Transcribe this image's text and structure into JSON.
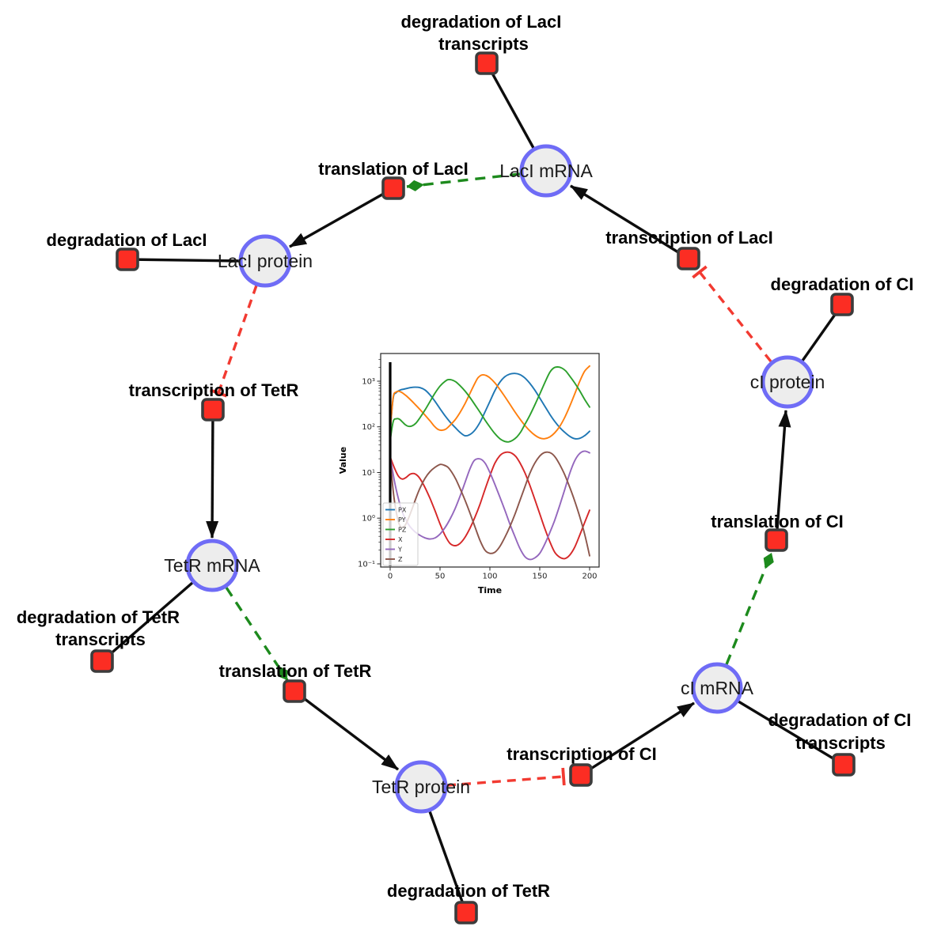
{
  "diagram": {
    "species": [
      {
        "id": "lacI_mRNA",
        "label": "LacI mRNA"
      },
      {
        "id": "lacI_protein",
        "label": "LacI protein"
      },
      {
        "id": "tetR_mRNA",
        "label": "TetR mRNA"
      },
      {
        "id": "tetR_protein",
        "label": "TetR protein"
      },
      {
        "id": "cI_mRNA",
        "label": "cI mRNA"
      },
      {
        "id": "cI_protein",
        "label": "cI protein"
      }
    ],
    "reactions": [
      {
        "id": "deg_lacI_transcripts",
        "lines": [
          "degradation of LacI",
          "transcripts"
        ]
      },
      {
        "id": "translation_lacI",
        "lines": [
          "translation of LacI"
        ]
      },
      {
        "id": "transcription_lacI",
        "lines": [
          "transcription of LacI"
        ]
      },
      {
        "id": "deg_lacI",
        "lines": [
          "degradation of LacI"
        ]
      },
      {
        "id": "transcription_tetR",
        "lines": [
          "transcription of TetR"
        ]
      },
      {
        "id": "deg_tetR_transcripts",
        "lines": [
          "degradation of TetR",
          "transcripts"
        ]
      },
      {
        "id": "translation_tetR",
        "lines": [
          "translation of TetR"
        ]
      },
      {
        "id": "deg_tetR",
        "lines": [
          "degradation of TetR"
        ]
      },
      {
        "id": "transcription_cI",
        "lines": [
          "transcription of CI"
        ]
      },
      {
        "id": "deg_cI_transcripts",
        "lines": [
          "degradation of CI",
          "transcripts"
        ]
      },
      {
        "id": "translation_cI",
        "lines": [
          "translation of CI"
        ]
      },
      {
        "id": "deg_cI",
        "lines": [
          "degradation of CI"
        ]
      }
    ],
    "style_colors": {
      "species_fill": "#ededed",
      "species_border": "#6f6cf6",
      "reaction_fill": "#fc2d23",
      "reaction_border": "#3c3c3c",
      "plain_edge": "#0d0d0d",
      "activation_edge": "#1d8a1d",
      "inhibition_edge": "#f23a31"
    }
  },
  "chart_data": {
    "type": "line",
    "title": "",
    "xlabel": "Time",
    "ylabel": "Value",
    "xlim": [
      -9.5,
      209.5
    ],
    "xticks": [
      0,
      50,
      100,
      150,
      200
    ],
    "xtick_labels": [
      "0",
      "50",
      "100",
      "150",
      "200"
    ],
    "yscale": "log",
    "ylim": [
      0.085,
      4000
    ],
    "ytick_labels_top_down": [
      "10³",
      "10²",
      "10¹",
      "10⁰",
      "10⁻¹"
    ],
    "grid": false,
    "legend_position": "lower left",
    "initial_spike_line_x": 0,
    "series": [
      {
        "name": "PX",
        "color": "#1f77b4",
        "points": [
          [
            0,
            80
          ],
          [
            3,
            420
          ],
          [
            6,
            560
          ],
          [
            10,
            640
          ],
          [
            15,
            680
          ],
          [
            20,
            720
          ],
          [
            25,
            740
          ],
          [
            30,
            720
          ],
          [
            35,
            640
          ],
          [
            40,
            500
          ],
          [
            45,
            360
          ],
          [
            50,
            250
          ],
          [
            55,
            175
          ],
          [
            60,
            128
          ],
          [
            65,
            98
          ],
          [
            70,
            76
          ],
          [
            75,
            64
          ],
          [
            80,
            68
          ],
          [
            85,
            85
          ],
          [
            90,
            125
          ],
          [
            95,
            210
          ],
          [
            100,
            360
          ],
          [
            105,
            620
          ],
          [
            110,
            950
          ],
          [
            115,
            1250
          ],
          [
            120,
            1430
          ],
          [
            125,
            1480
          ],
          [
            130,
            1400
          ],
          [
            135,
            1180
          ],
          [
            140,
            900
          ],
          [
            145,
            640
          ],
          [
            150,
            430
          ],
          [
            155,
            285
          ],
          [
            160,
            190
          ],
          [
            165,
            132
          ],
          [
            170,
            97
          ],
          [
            175,
            76
          ],
          [
            180,
            62
          ],
          [
            185,
            55
          ],
          [
            190,
            56
          ],
          [
            195,
            64
          ],
          [
            200,
            80
          ]
        ]
      },
      {
        "name": "PY",
        "color": "#ff7f0e",
        "points": [
          [
            0,
            80
          ],
          [
            3,
            440
          ],
          [
            6,
            580
          ],
          [
            9,
            600
          ],
          [
            12,
            560
          ],
          [
            16,
            480
          ],
          [
            20,
            400
          ],
          [
            25,
            310
          ],
          [
            30,
            238
          ],
          [
            35,
            180
          ],
          [
            40,
            135
          ],
          [
            44,
            105
          ],
          [
            48,
            88
          ],
          [
            52,
            84
          ],
          [
            56,
            90
          ],
          [
            60,
            108
          ],
          [
            65,
            142
          ],
          [
            70,
            205
          ],
          [
            75,
            320
          ],
          [
            80,
            540
          ],
          [
            85,
            900
          ],
          [
            88,
            1180
          ],
          [
            92,
            1370
          ],
          [
            96,
            1340
          ],
          [
            100,
            1180
          ],
          [
            105,
            920
          ],
          [
            110,
            660
          ],
          [
            115,
            460
          ],
          [
            120,
            315
          ],
          [
            125,
            215
          ],
          [
            130,
            150
          ],
          [
            135,
            108
          ],
          [
            140,
            82
          ],
          [
            145,
            66
          ],
          [
            150,
            57
          ],
          [
            155,
            55
          ],
          [
            160,
            60
          ],
          [
            165,
            74
          ],
          [
            170,
            102
          ],
          [
            175,
            160
          ],
          [
            180,
            280
          ],
          [
            185,
            520
          ],
          [
            190,
            980
          ],
          [
            195,
            1650
          ],
          [
            200,
            2150
          ]
        ]
      },
      {
        "name": "PZ",
        "color": "#2ca02c",
        "points": [
          [
            0,
            50
          ],
          [
            3,
            130
          ],
          [
            6,
            150
          ],
          [
            9,
            148
          ],
          [
            12,
            130
          ],
          [
            15,
            112
          ],
          [
            18,
            103
          ],
          [
            22,
            105
          ],
          [
            26,
            122
          ],
          [
            30,
            160
          ],
          [
            35,
            235
          ],
          [
            40,
            360
          ],
          [
            45,
            550
          ],
          [
            50,
            780
          ],
          [
            55,
            990
          ],
          [
            58,
            1080
          ],
          [
            62,
            1060
          ],
          [
            66,
            960
          ],
          [
            70,
            800
          ],
          [
            75,
            610
          ],
          [
            80,
            440
          ],
          [
            85,
            305
          ],
          [
            90,
            210
          ],
          [
            95,
            142
          ],
          [
            100,
            99
          ],
          [
            105,
            71
          ],
          [
            110,
            55
          ],
          [
            115,
            48
          ],
          [
            119,
            47
          ],
          [
            123,
            51
          ],
          [
            127,
            60
          ],
          [
            131,
            78
          ],
          [
            135,
            112
          ],
          [
            140,
            178
          ],
          [
            145,
            300
          ],
          [
            150,
            520
          ],
          [
            155,
            920
          ],
          [
            160,
            1550
          ],
          [
            164,
            1950
          ],
          [
            168,
            2050
          ],
          [
            172,
            1950
          ],
          [
            176,
            1680
          ],
          [
            180,
            1300
          ],
          [
            185,
            920
          ],
          [
            190,
            620
          ],
          [
            195,
            400
          ],
          [
            200,
            270
          ]
        ]
      },
      {
        "name": "X",
        "color": "#d62728",
        "points": [
          [
            0,
            22
          ],
          [
            4,
            13
          ],
          [
            8,
            8.5
          ],
          [
            12,
            7.2
          ],
          [
            16,
            7.8
          ],
          [
            20,
            9.2
          ],
          [
            24,
            9.5
          ],
          [
            28,
            8.3
          ],
          [
            32,
            6.2
          ],
          [
            36,
            4.2
          ],
          [
            40,
            2.7
          ],
          [
            45,
            1.45
          ],
          [
            50,
            0.75
          ],
          [
            55,
            0.42
          ],
          [
            60,
            0.28
          ],
          [
            65,
            0.25
          ],
          [
            70,
            0.28
          ],
          [
            75,
            0.38
          ],
          [
            80,
            0.6
          ],
          [
            85,
            1.05
          ],
          [
            90,
            2
          ],
          [
            95,
            4.2
          ],
          [
            100,
            8.5
          ],
          [
            105,
            16
          ],
          [
            110,
            23.5
          ],
          [
            114,
            27
          ],
          [
            118,
            28
          ],
          [
            122,
            26.5
          ],
          [
            126,
            22.5
          ],
          [
            130,
            16.5
          ],
          [
            135,
            10
          ],
          [
            140,
            5.3
          ],
          [
            145,
            2.6
          ],
          [
            150,
            1.25
          ],
          [
            155,
            0.6
          ],
          [
            160,
            0.31
          ],
          [
            165,
            0.18
          ],
          [
            170,
            0.14
          ],
          [
            175,
            0.13
          ],
          [
            180,
            0.155
          ],
          [
            185,
            0.23
          ],
          [
            190,
            0.42
          ],
          [
            195,
            0.8
          ],
          [
            200,
            1.5
          ]
        ]
      },
      {
        "name": "Y",
        "color": "#9467bd",
        "points": [
          [
            0,
            22
          ],
          [
            4,
            7
          ],
          [
            8,
            2.8
          ],
          [
            12,
            1.4
          ],
          [
            16,
            0.9
          ],
          [
            20,
            0.65
          ],
          [
            25,
            0.5
          ],
          [
            30,
            0.42
          ],
          [
            35,
            0.37
          ],
          [
            40,
            0.35
          ],
          [
            45,
            0.37
          ],
          [
            50,
            0.45
          ],
          [
            55,
            0.62
          ],
          [
            60,
            0.95
          ],
          [
            65,
            1.6
          ],
          [
            70,
            3
          ],
          [
            75,
            6
          ],
          [
            80,
            12
          ],
          [
            84,
            18
          ],
          [
            88,
            20
          ],
          [
            92,
            19
          ],
          [
            96,
            15
          ],
          [
            100,
            10
          ],
          [
            105,
            5.5
          ],
          [
            110,
            2.9
          ],
          [
            115,
            1.5
          ],
          [
            120,
            0.75
          ],
          [
            125,
            0.4
          ],
          [
            130,
            0.22
          ],
          [
            135,
            0.145
          ],
          [
            140,
            0.125
          ],
          [
            145,
            0.135
          ],
          [
            150,
            0.17
          ],
          [
            155,
            0.27
          ],
          [
            160,
            0.48
          ],
          [
            165,
            0.9
          ],
          [
            170,
            1.9
          ],
          [
            175,
            4.2
          ],
          [
            180,
            9.5
          ],
          [
            185,
            18
          ],
          [
            190,
            26
          ],
          [
            195,
            29.5
          ],
          [
            200,
            27
          ]
        ]
      },
      {
        "name": "Z",
        "color": "#8c564b",
        "points": [
          [
            0,
            22
          ],
          [
            3,
            4
          ],
          [
            6,
            1.4
          ],
          [
            9,
            0.75
          ],
          [
            12,
            0.62
          ],
          [
            15,
            0.7
          ],
          [
            18,
            0.95
          ],
          [
            22,
            1.6
          ],
          [
            26,
            2.8
          ],
          [
            30,
            4.6
          ],
          [
            35,
            7.5
          ],
          [
            40,
            10.5
          ],
          [
            45,
            13
          ],
          [
            50,
            15
          ],
          [
            54,
            14.5
          ],
          [
            58,
            13
          ],
          [
            62,
            10
          ],
          [
            66,
            7
          ],
          [
            70,
            4.5
          ],
          [
            75,
            2.5
          ],
          [
            80,
            1.3
          ],
          [
            85,
            0.65
          ],
          [
            90,
            0.33
          ],
          [
            95,
            0.2
          ],
          [
            100,
            0.17
          ],
          [
            105,
            0.18
          ],
          [
            110,
            0.24
          ],
          [
            115,
            0.38
          ],
          [
            120,
            0.65
          ],
          [
            125,
            1.2
          ],
          [
            130,
            2.4
          ],
          [
            135,
            4.8
          ],
          [
            140,
            9.5
          ],
          [
            145,
            16
          ],
          [
            150,
            23
          ],
          [
            154,
            27
          ],
          [
            158,
            28
          ],
          [
            162,
            26
          ],
          [
            166,
            21
          ],
          [
            170,
            15
          ],
          [
            175,
            9
          ],
          [
            180,
            4.8
          ],
          [
            185,
            2.4
          ],
          [
            190,
            1.1
          ],
          [
            195,
            0.45
          ],
          [
            200,
            0.15
          ]
        ]
      }
    ]
  }
}
